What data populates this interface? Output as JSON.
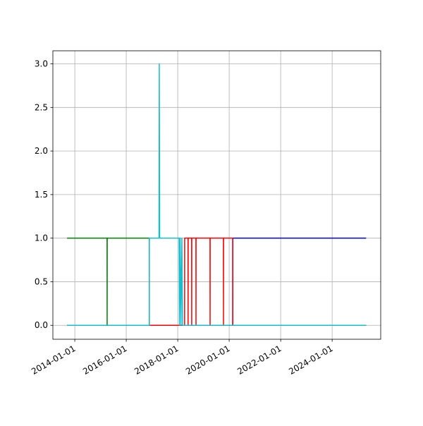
{
  "chart_data": {
    "type": "line",
    "xlim": [
      "2013-02-24",
      "2025-11-20"
    ],
    "ylim": [
      -0.16,
      3.15
    ],
    "xticks": [
      "2014-01-01",
      "2016-01-01",
      "2018-01-01",
      "2020-01-01",
      "2022-01-01",
      "2024-01-01"
    ],
    "yticks": [
      {
        "value": 0,
        "label": "0.0"
      },
      {
        "value": 0.5,
        "label": "0.5"
      },
      {
        "value": 1,
        "label": "1.0"
      },
      {
        "value": 1.5,
        "label": "1.5"
      },
      {
        "value": 2,
        "label": "2.0"
      },
      {
        "value": 2.5,
        "label": "2.5"
      },
      {
        "value": 3,
        "label": "3.0"
      }
    ],
    "grid": true,
    "series": [
      {
        "color": "#0000ff",
        "x": [
          "2013-09-13",
          "2020-02-20",
          "2020-02-21",
          "2025-04-27"
        ],
        "values": [
          0,
          0,
          1,
          1
        ]
      },
      {
        "color": "#008000",
        "x": [
          "2013-09-13",
          "2015-04-04",
          "2015-04-05",
          "2015-04-06",
          "2016-11-23",
          "2016-11-24",
          "2025-04-27"
        ],
        "values": [
          1,
          1,
          0,
          1,
          1,
          0,
          0
        ]
      },
      {
        "color": "#ff0000",
        "x": [
          "2016-11-24",
          "2018-04-08",
          "2018-04-09",
          "2018-05-27",
          "2018-05-28",
          "2018-05-29",
          "2018-07-17",
          "2018-07-18",
          "2018-07-19",
          "2018-09-16",
          "2018-09-17",
          "2018-09-18",
          "2019-04-04",
          "2019-04-05",
          "2019-04-06",
          "2019-10-11",
          "2019-10-12",
          "2019-10-13",
          "2020-02-20",
          "2020-02-21",
          "2025-04-27"
        ],
        "values": [
          0,
          0,
          1,
          1,
          0,
          1,
          1,
          0,
          1,
          1,
          0,
          1,
          1,
          0,
          1,
          1,
          0,
          1,
          1,
          0,
          0
        ]
      },
      {
        "color": "#17becf",
        "x": [
          "2013-09-13",
          "2016-11-23",
          "2016-11-24",
          "2017-04-10",
          "2017-04-14",
          "2017-04-20",
          "2018-01-20",
          "2018-01-25",
          "2018-02-05",
          "2018-02-15",
          "2018-03-01",
          "2018-03-10",
          "2025-04-27"
        ],
        "values": [
          0,
          0,
          1,
          1,
          3,
          1,
          1,
          0,
          1,
          0,
          1,
          0,
          0
        ]
      }
    ]
  }
}
